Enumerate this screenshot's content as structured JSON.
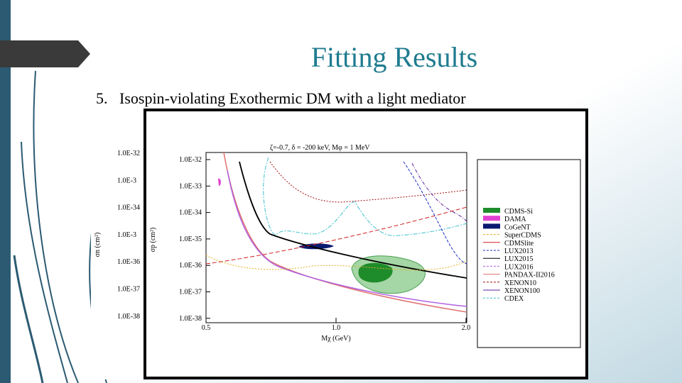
{
  "slide": {
    "title": "Fitting Results",
    "item": "5.   Isospin-violating Exothermic DM with a light mediator"
  },
  "figure": {
    "title": "ζ=-0.7, δ = -200 keV, Mφ = 1 MeV",
    "y_label": "σp (cm²)",
    "x_label": "Mχ (GeV)",
    "y_tick_labels": [
      "1.0E-32",
      "1.0E-33",
      "1.0E-34",
      "1.0E-35",
      "1.0E-36",
      "1.0E-37",
      "1.0E-38"
    ],
    "x_tick_labels": [
      "0.5",
      "1.0",
      "2.0"
    ],
    "legend": [
      {
        "label": "CDMS-Si",
        "color": "#1e8c2a"
      },
      {
        "label": "DAMA",
        "color": "#e040d0"
      },
      {
        "label": "CoGeNT",
        "color": "#0a1a70"
      },
      {
        "label": "SuperCDMS",
        "color": "#e0b020"
      },
      {
        "label": "CDMSlite",
        "color": "#d02020"
      },
      {
        "label": "LUX2013",
        "color": "#2030c0"
      },
      {
        "label": "LUX2015",
        "color": "#000000"
      },
      {
        "label": "LUX2016",
        "color": "#b060e0"
      },
      {
        "label": "PANDAX-II2016",
        "color": "#e07070"
      },
      {
        "label": "XENON10",
        "color": "#a01010"
      },
      {
        "label": "XENON100",
        "color": "#6020a0"
      },
      {
        "label": "CDEX",
        "color": "#40c0d0"
      }
    ],
    "back_y_label": "σn (cm²)",
    "back_y_tick_labels": [
      "1.0E-32",
      "1.0E-3",
      "1.0E-34",
      "1.0E-3",
      "1.0E-36",
      "1.0E-37",
      "1.0E-38"
    ]
  }
}
